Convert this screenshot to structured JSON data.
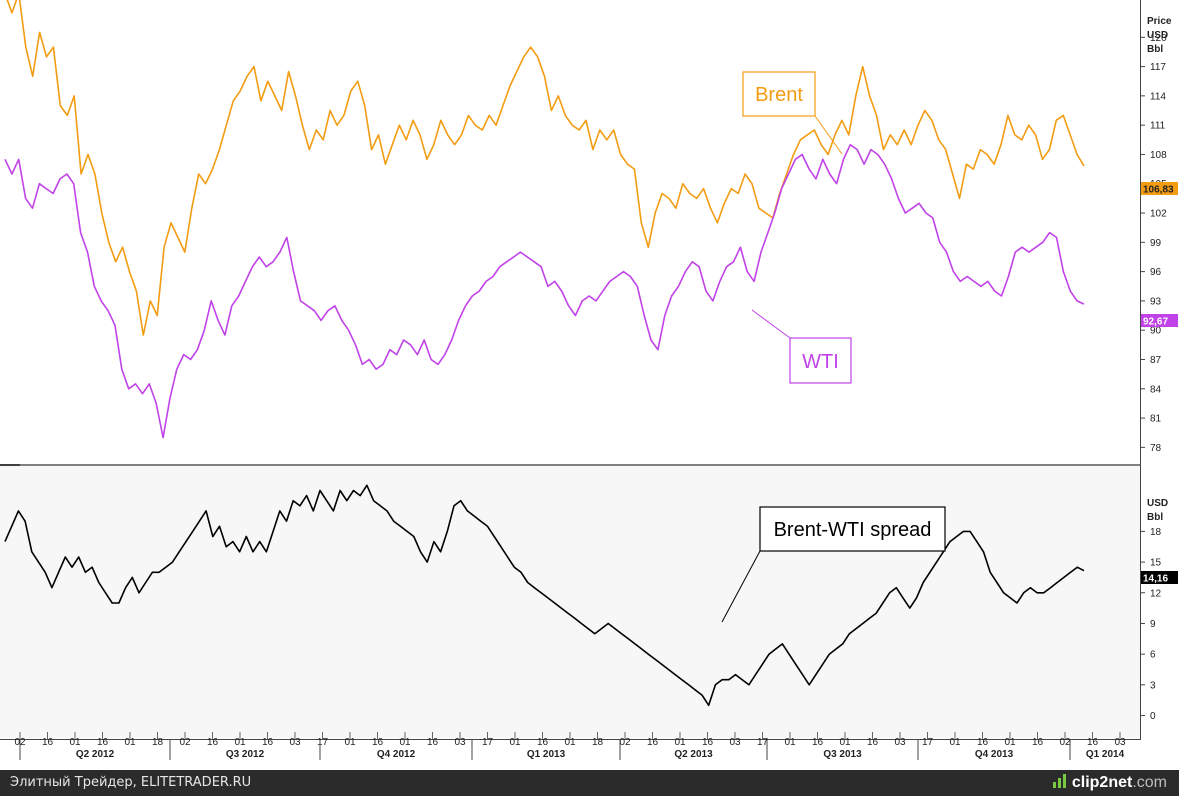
{
  "chart_data": [
    {
      "type": "line",
      "panel": "price",
      "y_unit_label": [
        "Price",
        "USD",
        "Bbl"
      ],
      "ylim": [
        76.5,
        123
      ],
      "yticks": [
        78,
        81,
        84,
        87,
        90,
        93,
        96,
        99,
        102,
        105,
        108,
        111,
        114,
        117,
        120
      ],
      "series": [
        {
          "name": "Brent",
          "label": "Brent",
          "color": "#f39c12",
          "last_value_label": "106,83",
          "values": [
            124.5,
            122.5,
            124.5,
            119,
            116,
            120.5,
            118,
            119,
            113,
            112,
            114,
            106,
            108,
            106,
            102,
            99,
            97,
            98.5,
            96,
            94,
            89.5,
            93,
            91.5,
            98.5,
            101,
            99.5,
            98,
            102.5,
            106,
            105,
            106.5,
            108.5,
            111,
            113.5,
            114.5,
            116,
            117,
            113.5,
            115.5,
            114,
            112.5,
            116.5,
            114,
            111,
            108.5,
            110.5,
            109.5,
            112.5,
            111,
            112,
            114.5,
            115.5,
            113,
            108.5,
            110,
            107,
            109,
            111,
            109.5,
            111.5,
            110,
            107.5,
            109,
            111.5,
            110,
            109,
            110,
            112,
            111,
            110.5,
            112,
            111,
            113,
            115,
            116.5,
            118,
            119,
            118,
            116,
            112.5,
            114,
            112,
            111,
            110.5,
            111.5,
            108.5,
            110.5,
            109.5,
            110.5,
            108,
            107,
            106.5,
            101,
            98.5,
            102,
            104,
            103.5,
            102.5,
            105,
            104,
            103.5,
            104.5,
            102.5,
            101,
            103,
            104.5,
            104,
            106,
            105,
            102.5,
            102,
            101.5,
            104,
            106,
            108,
            109.5,
            110,
            110.5,
            109,
            108,
            110,
            111.5,
            110,
            114,
            117,
            114,
            112,
            108.5,
            110,
            109,
            110.5,
            109,
            111,
            112.5,
            111.5,
            109.5,
            108.5,
            106,
            103.5,
            107,
            106.5,
            108.5,
            108,
            107,
            109,
            112,
            110,
            109.5,
            111,
            110,
            107.5,
            108.5,
            111.5,
            112,
            110,
            108,
            106.83
          ]
        },
        {
          "name": "WTI",
          "label": "WTI",
          "color": "#c142e8",
          "last_value_label": "92,67",
          "values": [
            107.5,
            106,
            107.5,
            103.5,
            102.5,
            105,
            104.5,
            104,
            105.5,
            106,
            105,
            100,
            98,
            94.5,
            93,
            92,
            90.5,
            86,
            84,
            84.5,
            83.5,
            84.5,
            82.5,
            79,
            83,
            86,
            87.5,
            87,
            88,
            90,
            93,
            91,
            89.5,
            92.5,
            93.5,
            95,
            96.5,
            97.5,
            96.5,
            97,
            98,
            99.5,
            96,
            93,
            92.5,
            92,
            91,
            92,
            92.5,
            91,
            90,
            88.5,
            86.5,
            87,
            86,
            86.5,
            88,
            87.5,
            89,
            88.5,
            87.5,
            89,
            87,
            86.5,
            87.5,
            89,
            91,
            92.5,
            93.5,
            94,
            95,
            95.5,
            96.5,
            97,
            97.5,
            98,
            97.5,
            97,
            96.5,
            94.5,
            95,
            94,
            92.5,
            91.5,
            93,
            93.5,
            93,
            94,
            95,
            95.5,
            96,
            95.5,
            94.5,
            91.5,
            89,
            88,
            91.5,
            93.5,
            94.5,
            96,
            97,
            96.5,
            94,
            93,
            95,
            96.5,
            97,
            98.5,
            96,
            95,
            98,
            100,
            102,
            104.5,
            106,
            107.5,
            108,
            106.5,
            105.5,
            107.5,
            106,
            105,
            107.5,
            109,
            108.5,
            107,
            108.5,
            108,
            107,
            105.5,
            103.5,
            102,
            102.5,
            103,
            102,
            101.5,
            99,
            98,
            96,
            95,
            95.5,
            95,
            94.5,
            95,
            94,
            93.5,
            95.5,
            98,
            98.5,
            98,
            98.5,
            99,
            100,
            99.5,
            96,
            94,
            93,
            92.67
          ]
        }
      ]
    },
    {
      "type": "line",
      "panel": "spread",
      "y_unit_label": [
        "USD",
        "Bbl"
      ],
      "ylim": [
        -2,
        24
      ],
      "yticks": [
        0,
        3,
        6,
        9,
        12,
        15,
        18
      ],
      "series": [
        {
          "name": "Brent-WTI spread",
          "label": "Brent-WTI spread",
          "color": "#000000",
          "last_value_label": "14,16",
          "values": [
            17,
            18.5,
            20,
            19,
            16,
            15,
            14,
            12.5,
            14,
            15.5,
            14.5,
            15.5,
            14,
            14.5,
            13,
            12,
            11,
            11,
            12.5,
            13.5,
            12,
            13,
            14,
            14,
            14.5,
            15,
            16,
            17,
            18,
            19,
            20,
            17.5,
            18.5,
            16.5,
            17,
            16,
            17.5,
            16,
            17,
            16,
            18,
            20,
            19,
            21,
            20.5,
            21.5,
            20,
            22,
            21,
            20,
            22,
            21,
            22,
            21.5,
            22.5,
            21,
            20.5,
            20,
            19,
            18.5,
            18,
            17.5,
            16,
            15,
            17,
            16,
            18,
            20.5,
            21,
            20,
            19.5,
            19,
            18.5,
            17.5,
            16.5,
            15.5,
            14.5,
            14,
            13,
            12.5,
            12,
            11.5,
            11,
            10.5,
            10,
            9.5,
            9,
            8.5,
            8,
            8.5,
            9,
            8.5,
            8,
            7.5,
            7,
            6.5,
            6,
            5.5,
            5,
            4.5,
            4,
            3.5,
            3,
            2.5,
            2,
            1,
            3,
            3.5,
            3.5,
            4,
            3.5,
            3,
            4,
            5,
            6,
            6.5,
            7,
            6,
            5,
            4,
            3,
            4,
            5,
            6,
            6.5,
            7,
            8,
            8.5,
            9,
            9.5,
            10,
            11,
            12,
            12.5,
            11.5,
            10.5,
            11.5,
            13,
            14,
            15,
            16,
            17,
            17.5,
            18,
            18,
            17,
            16,
            14,
            13,
            12,
            11.5,
            11,
            12,
            12.5,
            12,
            12,
            12.5,
            13,
            13.5,
            14,
            14.5,
            14.16
          ]
        }
      ]
    }
  ],
  "x_axis": {
    "day_ticks": [
      "02",
      "16",
      "01",
      "16",
      "01",
      "18",
      "02",
      "16",
      "01",
      "16",
      "03",
      "17",
      "01",
      "16",
      "01",
      "16",
      "03",
      "17",
      "01",
      "16",
      "01",
      "18",
      "02",
      "16",
      "01",
      "16",
      "03",
      "17",
      "01",
      "16",
      "01",
      "16",
      "03",
      "17",
      "01",
      "16",
      "01",
      "16",
      "02",
      "16",
      "03"
    ],
    "quarter_labels": [
      "Q2 2012",
      "Q3 2012",
      "Q4 2012",
      "Q1 2013",
      "Q2 2013",
      "Q3 2013",
      "Q4 2013",
      "Q1 2014"
    ]
  },
  "annotations": {
    "brent_box": "Brent",
    "wti_box": "WTI",
    "spread_box": "Brent-WTI spread"
  },
  "footer": {
    "source_text": "Элитный Трейдер, ELITETRADER.RU",
    "logo_text": "clip2net",
    "logo_suffix": ".com"
  },
  "colors": {
    "brent": "#f39c12",
    "wti": "#c142e8",
    "spread": "#000000",
    "footer_bg": "#2b2b2b"
  }
}
